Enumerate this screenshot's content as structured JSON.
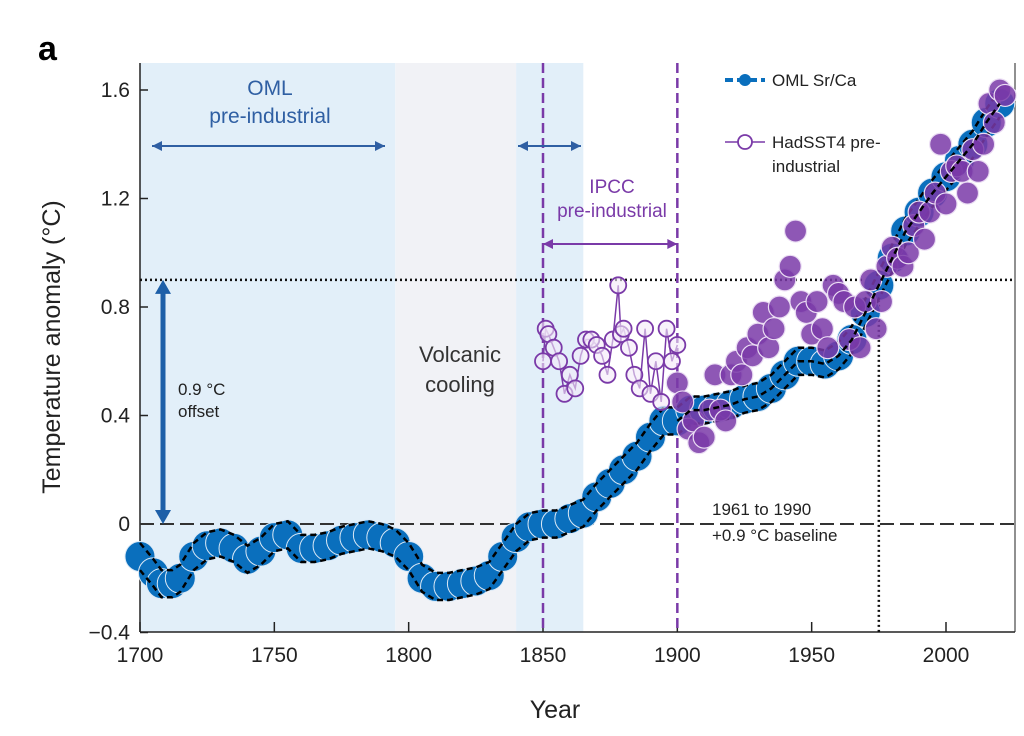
{
  "panel_label": "a",
  "chart_data": {
    "type": "scatter",
    "xlabel": "Year",
    "ylabel": "Temperature anomaly (°C)",
    "xlim": [
      1700,
      2025
    ],
    "ylim": [
      -0.4,
      1.7
    ],
    "xticks": [
      1700,
      1750,
      1800,
      1850,
      1900,
      1950,
      2000
    ],
    "yticks": [
      -0.4,
      0,
      0.4,
      0.8,
      1.2,
      1.6
    ],
    "ytick_labels": [
      "−0.4",
      "0",
      "0.4",
      "0.8",
      "1.2",
      "1.6"
    ],
    "legend_placement": "top-right",
    "colors": {
      "oml": "#0a6fbd",
      "hadsst": "#7a3aa8",
      "band_blue": "#e2eff9",
      "band_gray": "#f1f2f6"
    },
    "series": [
      {
        "name": "OML Sr/Ca",
        "x": [
          1700,
          1705,
          1708,
          1712,
          1715,
          1720,
          1725,
          1730,
          1735,
          1740,
          1745,
          1750,
          1755,
          1760,
          1765,
          1770,
          1775,
          1780,
          1785,
          1790,
          1795,
          1800,
          1805,
          1810,
          1815,
          1820,
          1825,
          1830,
          1835,
          1840,
          1845,
          1850,
          1855,
          1860,
          1865,
          1870,
          1875,
          1880,
          1885,
          1890,
          1895,
          1900,
          1905,
          1910,
          1915,
          1920,
          1925,
          1930,
          1935,
          1940,
          1945,
          1950,
          1955,
          1960,
          1965,
          1970,
          1975,
          1980,
          1985,
          1990,
          1995,
          2000,
          2005,
          2010,
          2015,
          2020
        ],
        "y": [
          -0.12,
          -0.18,
          -0.22,
          -0.22,
          -0.2,
          -0.12,
          -0.08,
          -0.07,
          -0.09,
          -0.13,
          -0.1,
          -0.05,
          -0.04,
          -0.09,
          -0.09,
          -0.08,
          -0.06,
          -0.05,
          -0.04,
          -0.05,
          -0.07,
          -0.12,
          -0.2,
          -0.23,
          -0.23,
          -0.22,
          -0.21,
          -0.19,
          -0.12,
          -0.05,
          -0.01,
          0.0,
          0.0,
          0.02,
          0.04,
          0.1,
          0.15,
          0.2,
          0.25,
          0.32,
          0.38,
          0.38,
          0.42,
          0.42,
          0.43,
          0.44,
          0.46,
          0.47,
          0.5,
          0.55,
          0.6,
          0.6,
          0.59,
          0.62,
          0.68,
          0.78,
          0.88,
          0.98,
          1.08,
          1.15,
          1.22,
          1.28,
          1.34,
          1.4,
          1.48,
          1.55
        ]
      },
      {
        "name": "HadSST4 pre-industrial",
        "x": [
          1850,
          1851,
          1852,
          1854,
          1856,
          1858,
          1860,
          1862,
          1864,
          1866,
          1868,
          1870,
          1872,
          1874,
          1876,
          1878,
          1879,
          1880,
          1882,
          1884,
          1886,
          1888,
          1890,
          1892,
          1894,
          1896,
          1898,
          1900
        ],
        "y": [
          0.6,
          0.72,
          0.7,
          0.65,
          0.6,
          0.48,
          0.55,
          0.5,
          0.62,
          0.68,
          0.68,
          0.66,
          0.62,
          0.55,
          0.68,
          0.88,
          0.7,
          0.72,
          0.65,
          0.55,
          0.5,
          0.72,
          0.48,
          0.6,
          0.45,
          0.72,
          0.6,
          0.66
        ]
      },
      {
        "x": [
          1900,
          1902,
          1904,
          1906,
          1908,
          1910,
          1912,
          1914,
          1916,
          1918,
          1920,
          1922,
          1924,
          1926,
          1928,
          1930,
          1932,
          1934,
          1936,
          1938,
          1940,
          1942,
          1944,
          1946,
          1948,
          1950,
          1952,
          1954,
          1956,
          1958,
          1960,
          1962,
          1964,
          1966,
          1968,
          1970,
          1972,
          1974,
          1976,
          1978,
          1980,
          1982,
          1984,
          1986,
          1988,
          1990,
          1992,
          1994,
          1996,
          1998,
          2000,
          2002,
          2004,
          2006,
          2008,
          2010,
          2012,
          2014,
          2016,
          2018,
          2020,
          2022
        ],
        "y": [
          0.52,
          0.45,
          0.35,
          0.38,
          0.3,
          0.32,
          0.42,
          0.55,
          0.42,
          0.38,
          0.55,
          0.6,
          0.55,
          0.65,
          0.62,
          0.7,
          0.78,
          0.65,
          0.72,
          0.8,
          0.9,
          0.95,
          1.08,
          0.82,
          0.78,
          0.7,
          0.82,
          0.72,
          0.65,
          0.88,
          0.85,
          0.82,
          0.68,
          0.8,
          0.65,
          0.82,
          0.9,
          0.72,
          0.82,
          0.95,
          1.02,
          0.98,
          0.95,
          1.0,
          1.1,
          1.15,
          1.05,
          1.15,
          1.22,
          1.4,
          1.18,
          1.3,
          1.32,
          1.3,
          1.22,
          1.38,
          1.3,
          1.4,
          1.55,
          1.48,
          1.6,
          1.58
        ]
      }
    ],
    "annotations": {
      "oml_preindustrial": "OML\npre-industrial",
      "volcanic": "Volcanic\ncooling",
      "ipcc": "IPCC\npre-industrial",
      "offset": "0.9 °C\noffset",
      "baseline": "1961 to 1990\n+0.9 °C baseline"
    },
    "regions": {
      "oml_preindustrial": [
        1700,
        1795
      ],
      "volcanic_cooling": [
        1795,
        1840
      ],
      "transition": [
        1840,
        1865
      ],
      "ipcc_preindustrial": [
        1850,
        1900
      ]
    },
    "reference_lines": {
      "baseline_y": 0,
      "offset_y": 0.9,
      "offset_year": 1975
    }
  }
}
